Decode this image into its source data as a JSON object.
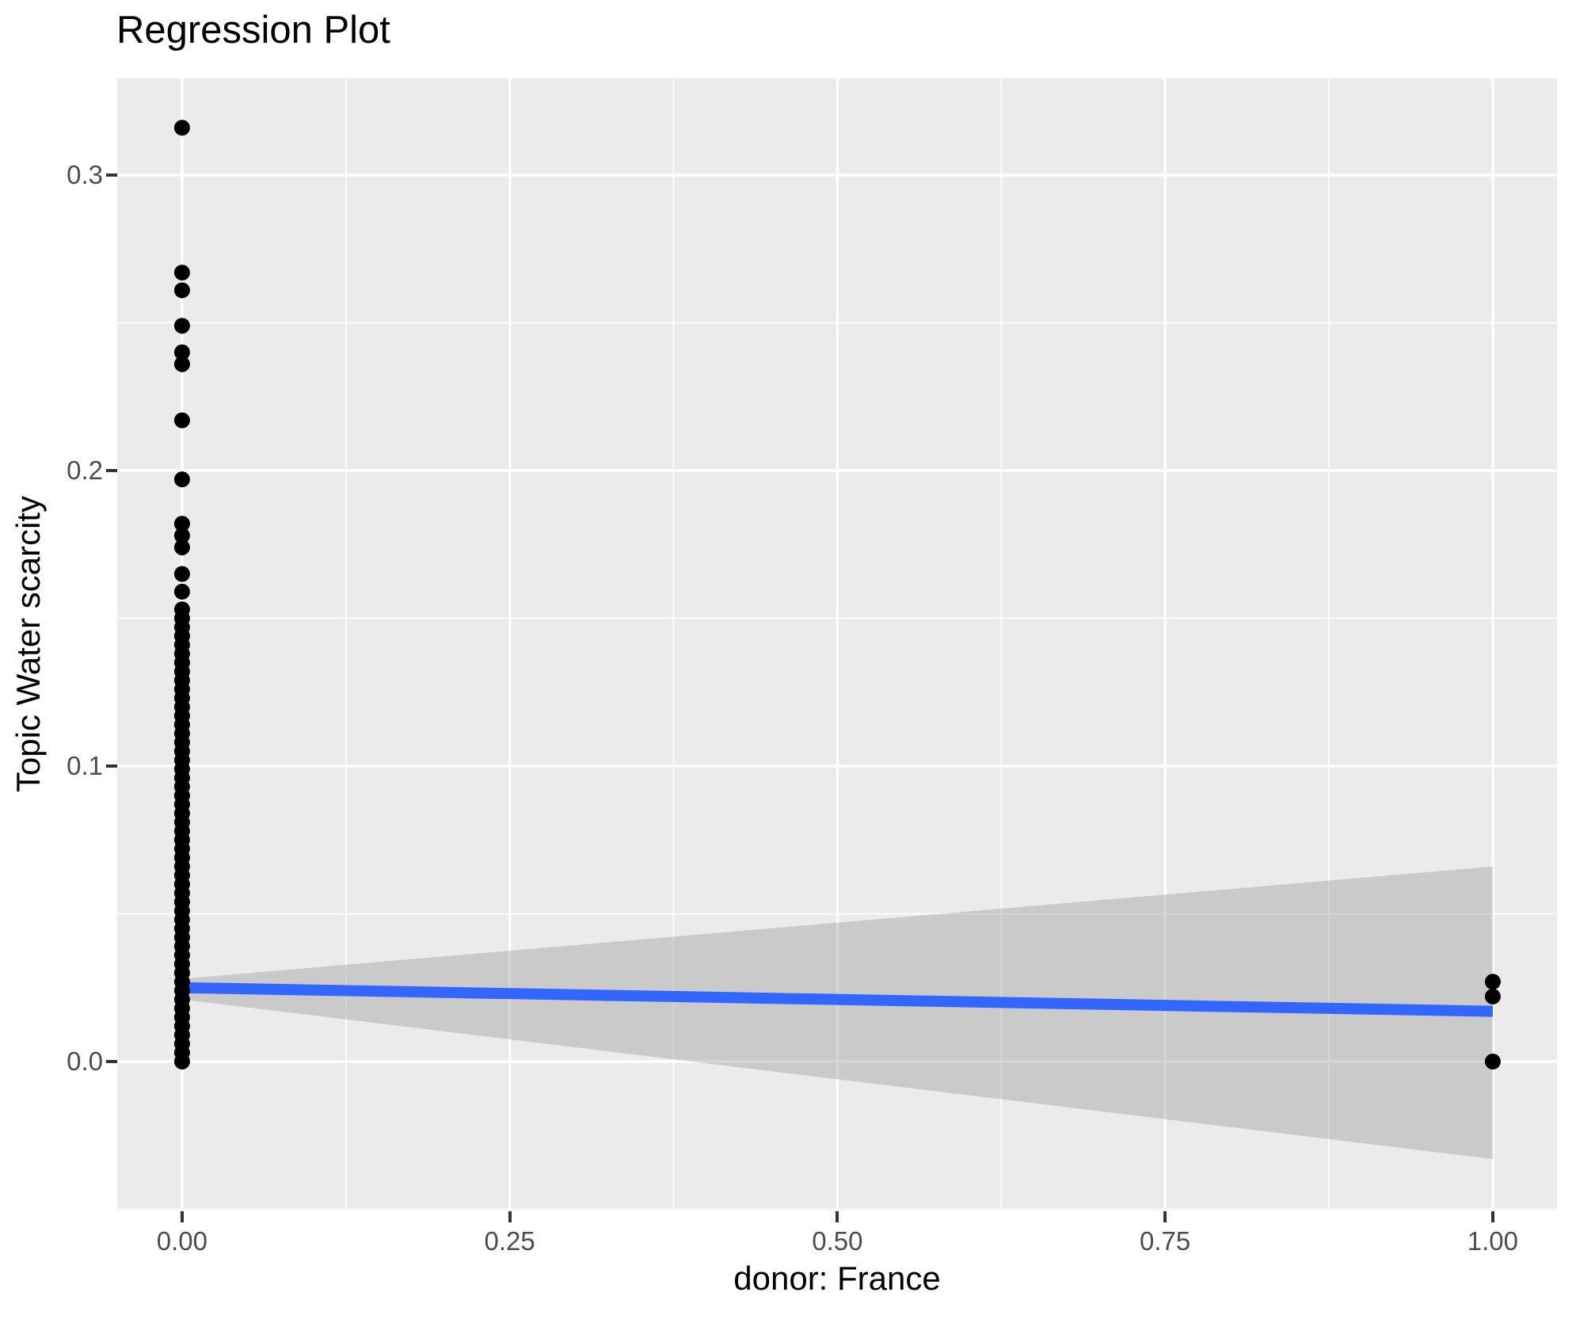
{
  "colors": {
    "panel_bg": "#EBEBEB",
    "grid": "#FFFFFF",
    "point": "#000000",
    "fit_line": "#3366FF",
    "band_fill": "#999999",
    "band_opacity": 0.4,
    "tick_label": "#4D4D4D",
    "tick_mark": "#333333",
    "text": "#000000"
  },
  "chart_data": {
    "type": "scatter",
    "title": "Regression Plot",
    "xlabel": "donor: France",
    "ylabel": "Topic Water scarcity",
    "grid": true,
    "legend": false,
    "xlim": [
      -0.0495,
      1.049
    ],
    "ylim": [
      -0.0504,
      0.3327
    ],
    "x_ticks": {
      "values": [
        0,
        0.25,
        0.5,
        0.75,
        1.0
      ],
      "labels": [
        "0.00",
        "0.25",
        "0.50",
        "0.75",
        "1.00"
      ],
      "minor": [
        0.125,
        0.375,
        0.625,
        0.875
      ]
    },
    "y_ticks": {
      "values": [
        0,
        0.1,
        0.2,
        0.3
      ],
      "labels": [
        "0.0",
        "0.1",
        "0.2",
        "0.3"
      ],
      "minor": [
        -0.05,
        0.05,
        0.15,
        0.25
      ]
    },
    "series": [
      {
        "name": "observations",
        "type": "scatter",
        "points": [
          [
            0,
            0.316
          ],
          [
            0,
            0.267
          ],
          [
            0,
            0.261
          ],
          [
            0,
            0.249
          ],
          [
            0,
            0.24
          ],
          [
            0,
            0.236
          ],
          [
            0,
            0.217
          ],
          [
            0,
            0.197
          ],
          [
            0,
            0.182
          ],
          [
            0,
            0.178
          ],
          [
            0,
            0.174
          ],
          [
            0,
            0.165
          ],
          [
            0,
            0.159
          ],
          [
            0,
            0.153
          ],
          [
            0,
            0.15
          ],
          [
            0,
            0.147
          ],
          [
            0,
            0.144
          ],
          [
            0,
            0.141
          ],
          [
            0,
            0.138
          ],
          [
            0,
            0.135
          ],
          [
            0,
            0.132
          ],
          [
            0,
            0.129
          ],
          [
            0,
            0.126
          ],
          [
            0,
            0.123
          ],
          [
            0,
            0.12
          ],
          [
            0,
            0.117
          ],
          [
            0,
            0.114
          ],
          [
            0,
            0.111
          ],
          [
            0,
            0.108
          ],
          [
            0,
            0.105
          ],
          [
            0,
            0.102
          ],
          [
            0,
            0.099
          ],
          [
            0,
            0.096
          ],
          [
            0,
            0.093
          ],
          [
            0,
            0.09
          ],
          [
            0,
            0.087
          ],
          [
            0,
            0.084
          ],
          [
            0,
            0.081
          ],
          [
            0,
            0.078
          ],
          [
            0,
            0.075
          ],
          [
            0,
            0.072
          ],
          [
            0,
            0.069
          ],
          [
            0,
            0.066
          ],
          [
            0,
            0.063
          ],
          [
            0,
            0.06
          ],
          [
            0,
            0.057
          ],
          [
            0,
            0.054
          ],
          [
            0,
            0.051
          ],
          [
            0,
            0.048
          ],
          [
            0,
            0.045
          ],
          [
            0,
            0.042
          ],
          [
            0,
            0.039
          ],
          [
            0,
            0.036
          ],
          [
            0,
            0.033
          ],
          [
            0,
            0.03
          ],
          [
            0,
            0.027
          ],
          [
            0,
            0.024
          ],
          [
            0,
            0.021
          ],
          [
            0,
            0.018
          ],
          [
            0,
            0.015
          ],
          [
            0,
            0.012
          ],
          [
            0,
            0.009
          ],
          [
            0,
            0.006
          ],
          [
            0,
            0.003
          ],
          [
            0,
            0.0
          ],
          [
            1,
            0.027
          ],
          [
            1,
            0.022
          ],
          [
            1,
            0.0
          ]
        ]
      },
      {
        "name": "regression-fit",
        "type": "line",
        "x": [
          0,
          1
        ],
        "y": [
          0.025,
          0.017
        ]
      },
      {
        "name": "confidence-band",
        "type": "band",
        "x": [
          0,
          1
        ],
        "upper": [
          0.028,
          0.066
        ],
        "lower": [
          0.021,
          -0.033
        ]
      }
    ]
  }
}
